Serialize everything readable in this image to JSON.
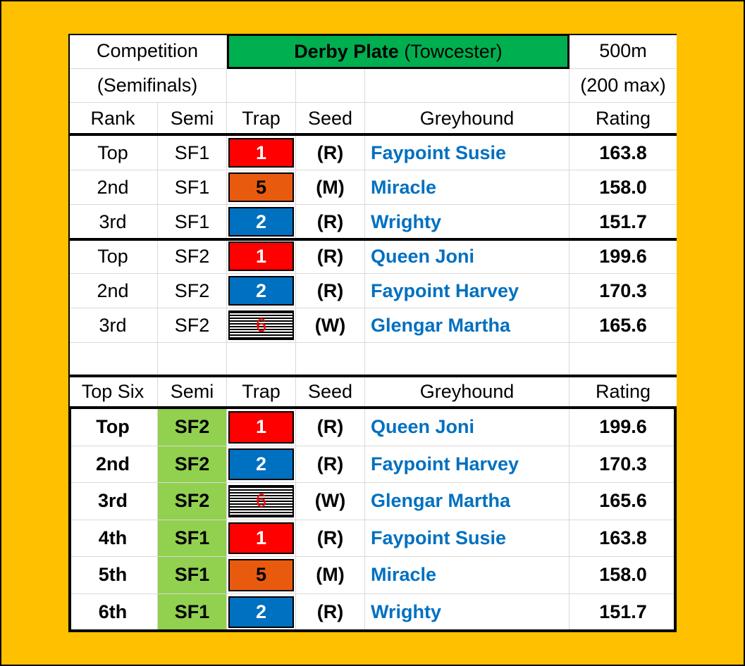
{
  "header": {
    "competition_label": "Competition",
    "event_bold": "Derby Plate",
    "event_venue": "(Towcester)",
    "distance": "500m",
    "round": "(Semifinals)",
    "max_note": "(200 max)"
  },
  "columns": {
    "rank": "Rank",
    "semi": "Semi",
    "trap": "Trap",
    "seed": "Seed",
    "greyhound": "Greyhound",
    "rating": "Rating",
    "topsix": "Top Six"
  },
  "colors": {
    "header_green": "#00B050",
    "semi_green": "#92D050",
    "trap1": "#FF0000",
    "trap2": "#0070C0",
    "trap5": "#E85B0E",
    "name_blue": "#0070C0",
    "background": "#FFC000"
  },
  "semis": [
    {
      "rank": "Top",
      "semi": "SF1",
      "trap": "1",
      "seed": "(R)",
      "greyhound": "Faypoint Susie",
      "rating": "163.8"
    },
    {
      "rank": "2nd",
      "semi": "SF1",
      "trap": "5",
      "seed": "(M)",
      "greyhound": "Miracle",
      "rating": "158.0"
    },
    {
      "rank": "3rd",
      "semi": "SF1",
      "trap": "2",
      "seed": "(R)",
      "greyhound": "Wrighty",
      "rating": "151.7"
    },
    {
      "rank": "Top",
      "semi": "SF2",
      "trap": "1",
      "seed": "(R)",
      "greyhound": "Queen Joni",
      "rating": "199.6"
    },
    {
      "rank": "2nd",
      "semi": "SF2",
      "trap": "2",
      "seed": "(R)",
      "greyhound": "Faypoint Harvey",
      "rating": "170.3"
    },
    {
      "rank": "3rd",
      "semi": "SF2",
      "trap": "6",
      "seed": "(W)",
      "greyhound": "Glengar Martha",
      "rating": "165.6"
    }
  ],
  "topsix": [
    {
      "rank": "Top",
      "semi": "SF2",
      "trap": "1",
      "seed": "(R)",
      "greyhound": "Queen Joni",
      "rating": "199.6"
    },
    {
      "rank": "2nd",
      "semi": "SF2",
      "trap": "2",
      "seed": "(R)",
      "greyhound": "Faypoint Harvey",
      "rating": "170.3"
    },
    {
      "rank": "3rd",
      "semi": "SF2",
      "trap": "6",
      "seed": "(W)",
      "greyhound": "Glengar Martha",
      "rating": "165.6"
    },
    {
      "rank": "4th",
      "semi": "SF1",
      "trap": "1",
      "seed": "(R)",
      "greyhound": "Faypoint Susie",
      "rating": "163.8"
    },
    {
      "rank": "5th",
      "semi": "SF1",
      "trap": "5",
      "seed": "(M)",
      "greyhound": "Miracle",
      "rating": "158.0"
    },
    {
      "rank": "6th",
      "semi": "SF1",
      "trap": "2",
      "seed": "(R)",
      "greyhound": "Wrighty",
      "rating": "151.7"
    }
  ]
}
